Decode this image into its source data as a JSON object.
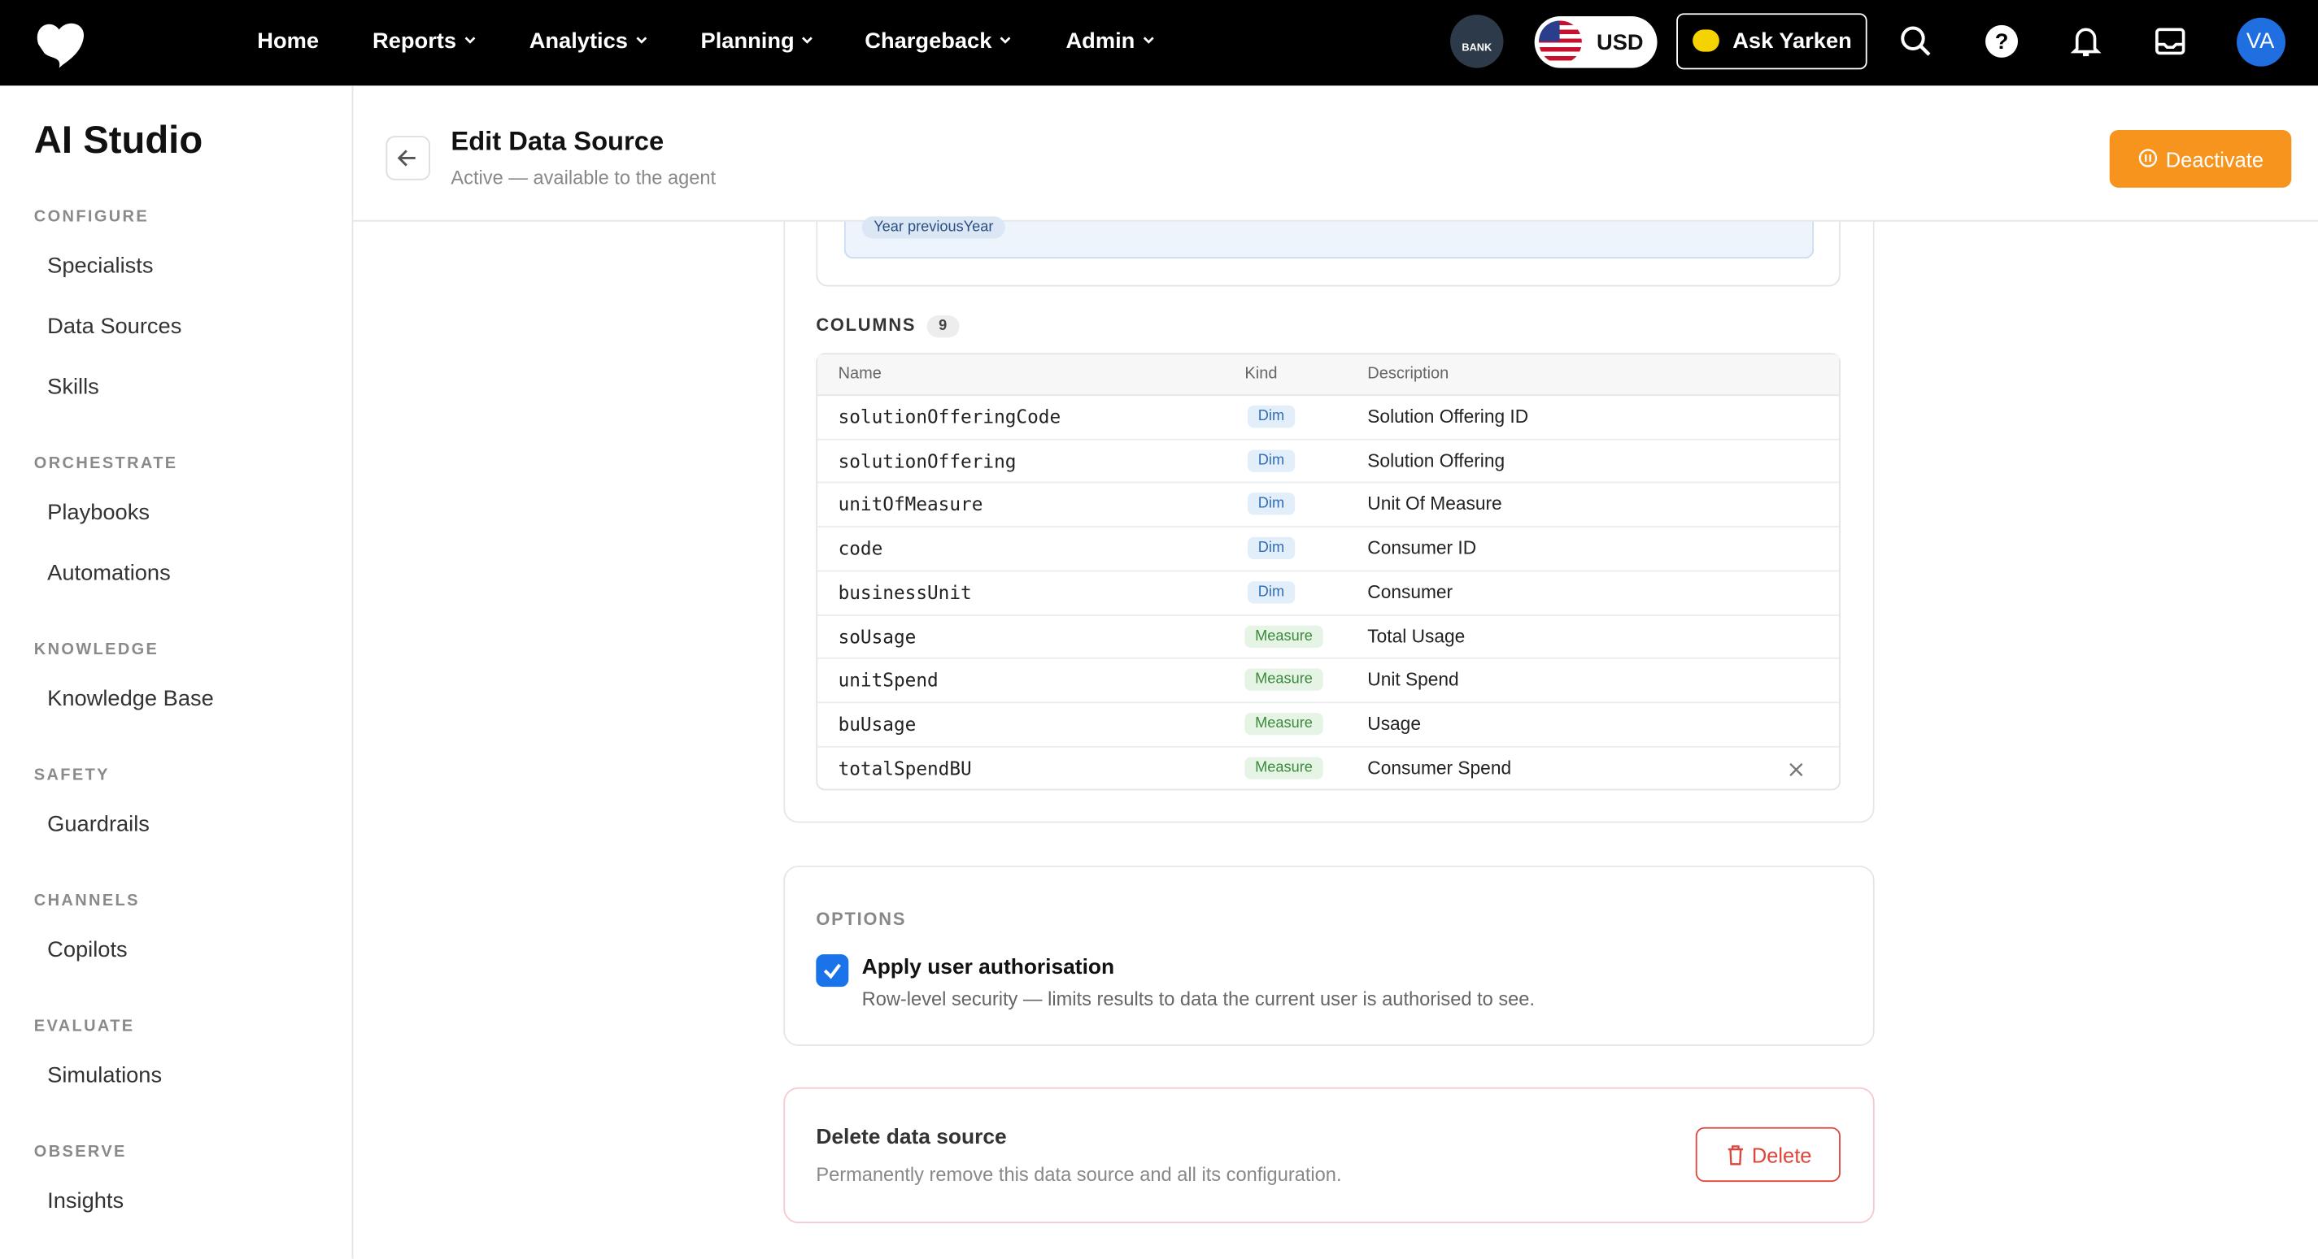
{
  "topbar": {
    "nav": [
      "Home",
      "Reports",
      "Analytics",
      "Planning",
      "Chargeback",
      "Admin"
    ],
    "bank": "BANK",
    "currency": "USD",
    "ask": "Ask Yarken",
    "avatar": "VA"
  },
  "sidebar": {
    "title": "AI Studio",
    "sections": [
      {
        "label": "CONFIGURE",
        "items": [
          "Specialists",
          "Data Sources",
          "Skills"
        ]
      },
      {
        "label": "ORCHESTRATE",
        "items": [
          "Playbooks",
          "Automations"
        ]
      },
      {
        "label": "KNOWLEDGE",
        "items": [
          "Knowledge Base"
        ]
      },
      {
        "label": "SAFETY",
        "items": [
          "Guardrails"
        ]
      },
      {
        "label": "CHANNELS",
        "items": [
          "Copilots"
        ]
      },
      {
        "label": "EVALUATE",
        "items": [
          "Simulations"
        ]
      },
      {
        "label": "OBSERVE",
        "items": [
          "Insights"
        ]
      }
    ]
  },
  "header": {
    "title": "Edit Data Source",
    "subtitle": "Active — available to the agent",
    "deactivate": "Deactivate"
  },
  "filter_chip": "Year previousYear",
  "columns": {
    "label": "COLUMNS",
    "count": "9",
    "headers": [
      "Name",
      "Kind",
      "Description"
    ],
    "rows": [
      [
        "solutionOfferingCode",
        "Dim",
        "Solution Offering ID"
      ],
      [
        "solutionOffering",
        "Dim",
        "Solution Offering"
      ],
      [
        "unitOfMeasure",
        "Dim",
        "Unit Of Measure"
      ],
      [
        "code",
        "Dim",
        "Consumer ID"
      ],
      [
        "businessUnit",
        "Dim",
        "Consumer"
      ],
      [
        "soUsage",
        "Measure",
        "Total Usage"
      ],
      [
        "unitSpend",
        "Measure",
        "Unit Spend"
      ],
      [
        "buUsage",
        "Measure",
        "Usage"
      ],
      [
        "totalSpendBU",
        "Measure",
        "Consumer Spend"
      ]
    ]
  },
  "options": {
    "label": "OPTIONS",
    "checkbox": "Apply user authorisation",
    "description": "Row-level security — limits results to data the current user is authorised to see."
  },
  "delete": {
    "title": "Delete data source",
    "description": "Permanently remove this data source and all its configuration.",
    "button": "Delete"
  }
}
